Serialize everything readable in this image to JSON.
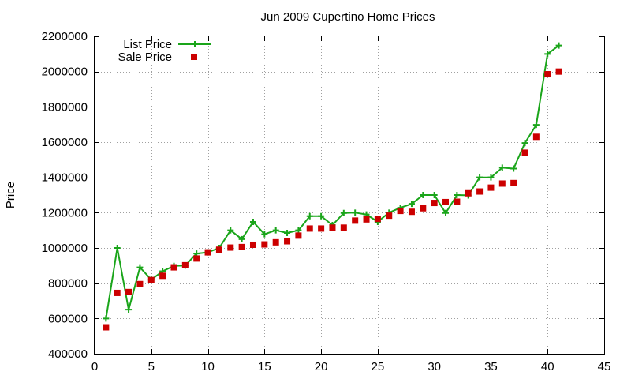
{
  "chart_data": {
    "type": "line",
    "title": "Jun 2009 Cupertino Home Prices",
    "xlabel": "",
    "ylabel": "Price",
    "xlim": [
      0,
      45
    ],
    "ylim": [
      400000,
      2200000
    ],
    "xticks": [
      0,
      5,
      10,
      15,
      20,
      25,
      30,
      35,
      40,
      45
    ],
    "yticks": [
      400000,
      600000,
      800000,
      1000000,
      1200000,
      1400000,
      1600000,
      1800000,
      2000000,
      2200000
    ],
    "grid": true,
    "legend_position": "top-left",
    "series": [
      {
        "name": "List Price",
        "style": "line-with-plus-markers",
        "color": "#1aa51a",
        "x": [
          1,
          2,
          3,
          4,
          5,
          6,
          7,
          8,
          9,
          10,
          11,
          12,
          13,
          14,
          15,
          16,
          17,
          18,
          19,
          20,
          21,
          22,
          23,
          24,
          25,
          26,
          27,
          28,
          29,
          30,
          31,
          32,
          33,
          34,
          35,
          36,
          37,
          38,
          39,
          40,
          41
        ],
        "y": [
          600000,
          1000000,
          650000,
          890000,
          820000,
          868000,
          898000,
          900000,
          968000,
          975000,
          1000000,
          1100000,
          1050000,
          1148000,
          1078000,
          1100000,
          1085000,
          1100000,
          1180000,
          1180000,
          1130000,
          1198000,
          1200000,
          1190000,
          1148000,
          1200000,
          1228000,
          1250000,
          1300000,
          1300000,
          1198000,
          1300000,
          1298000,
          1400000,
          1400000,
          1455000,
          1450000,
          1595000,
          1698000,
          2100000,
          2148000
        ]
      },
      {
        "name": "Sale Price",
        "style": "square-markers",
        "color": "#cc0000",
        "x": [
          1,
          2,
          3,
          4,
          5,
          6,
          7,
          8,
          9,
          10,
          11,
          12,
          13,
          14,
          15,
          16,
          17,
          18,
          19,
          20,
          21,
          22,
          23,
          24,
          25,
          26,
          27,
          28,
          29,
          30,
          31,
          32,
          33,
          34,
          35,
          36,
          37,
          38,
          39,
          40,
          41
        ],
        "y": [
          550000,
          745000,
          750000,
          795000,
          818000,
          842000,
          890000,
          902000,
          940000,
          975000,
          990000,
          1002000,
          1005000,
          1018000,
          1020000,
          1032000,
          1038000,
          1070000,
          1110000,
          1110000,
          1115000,
          1115000,
          1155000,
          1162000,
          1165000,
          1183000,
          1210000,
          1205000,
          1225000,
          1255000,
          1260000,
          1262000,
          1310000,
          1320000,
          1342000,
          1365000,
          1368000,
          1540000,
          1630000,
          1985000,
          2000000
        ]
      }
    ]
  }
}
